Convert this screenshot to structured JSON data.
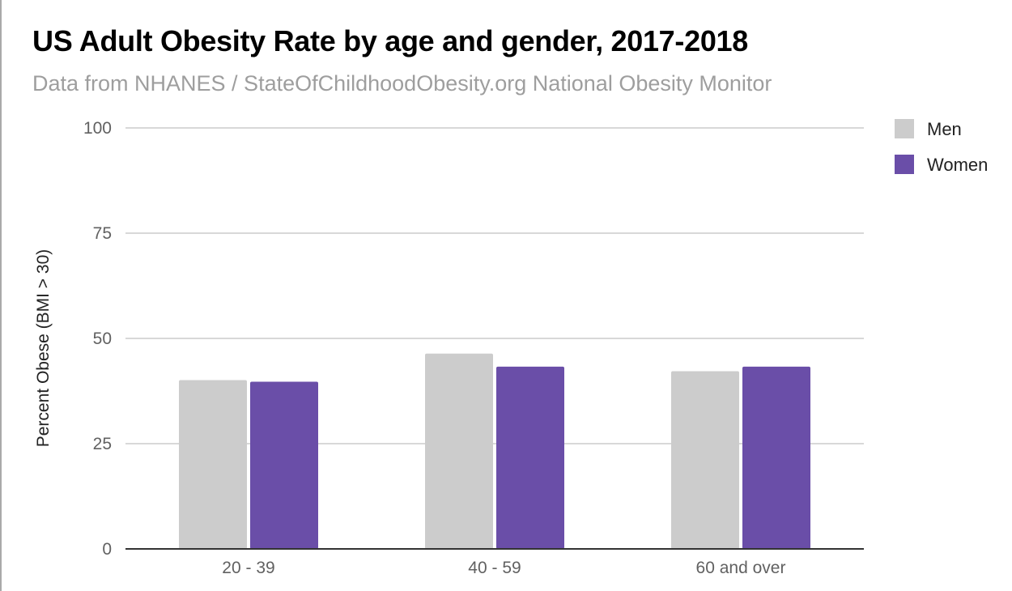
{
  "chart_data": {
    "type": "bar",
    "title": "US Adult Obesity Rate by age and gender, 2017-2018",
    "subtitle": "Data from NHANES / StateOfChildhoodObesity.org National Obesity Monitor",
    "xlabel": "",
    "ylabel": "Percent Obese (BMI > 30)",
    "ylim": [
      0,
      100
    ],
    "yticks": [
      0,
      25,
      50,
      75,
      100
    ],
    "categories": [
      "20 - 39",
      "40 - 59",
      "60 and over"
    ],
    "series": [
      {
        "name": "Men",
        "color": "#cccccc",
        "values": [
          40.1,
          46.4,
          42.2
        ]
      },
      {
        "name": "Women",
        "color": "#6a4ea8",
        "values": [
          39.7,
          43.3,
          43.3
        ]
      }
    ],
    "legend_position": "top-right",
    "grid": true
  }
}
